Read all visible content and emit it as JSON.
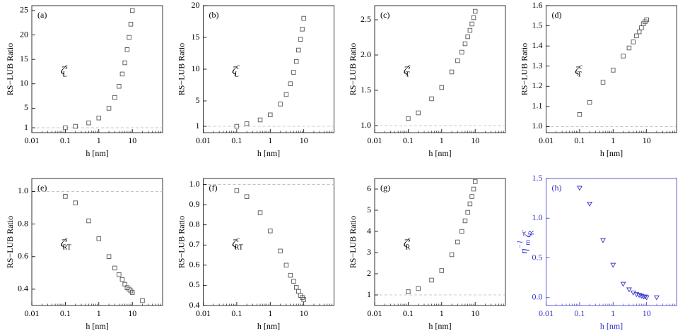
{
  "chart_data": [
    {
      "type": "scatter",
      "title": "(a)",
      "ylabel": "RS−LUB Ratio",
      "xlabel": "h [nm]",
      "xscale": "log",
      "annotation": [
        {
          "text": "ζ",
          "sub": "L",
          "sup": "s"
        }
      ],
      "x": [
        0.1,
        0.2,
        0.5,
        1,
        2,
        3,
        4,
        5,
        6,
        7,
        8,
        9,
        10
      ],
      "values": [
        1.0,
        1.3,
        2.0,
        3.0,
        5.0,
        7.2,
        9.5,
        12,
        14.3,
        17,
        19.5,
        22.2,
        25
      ],
      "xlim": [
        0.01,
        80
      ],
      "xticks": [
        0.01,
        0.1,
        1,
        10
      ],
      "ylim": [
        0,
        26
      ],
      "yticks": [
        1,
        5,
        10,
        15,
        20,
        25
      ],
      "ref_line": 1,
      "marker": "square",
      "color": "#555555",
      "axis_color": "#000000"
    },
    {
      "type": "scatter",
      "title": "(b)",
      "ylabel": "RS−LUB Ratio",
      "xlabel": "h [nm]",
      "xscale": "log",
      "annotation": [
        {
          "text": "ζ",
          "sub": "L",
          "sup": "c"
        }
      ],
      "x": [
        0.1,
        0.2,
        0.5,
        1,
        2,
        3,
        4,
        5,
        6,
        7,
        8,
        9,
        10
      ],
      "values": [
        1.0,
        1.4,
        2.0,
        2.8,
        4.5,
        6.0,
        7.7,
        9.5,
        11.2,
        13,
        14.7,
        16.3,
        18
      ],
      "xlim": [
        0.01,
        80
      ],
      "xticks": [
        0.01,
        0.1,
        1,
        10
      ],
      "ylim": [
        0,
        20
      ],
      "yticks": [
        1,
        5,
        10,
        15,
        20
      ],
      "ref_line": 1,
      "marker": "square",
      "color": "#555555",
      "axis_color": "#000000"
    },
    {
      "type": "scatter",
      "title": "(c)",
      "ylabel": "RS−LUB Ratio",
      "xlabel": "h [nm]",
      "xscale": "log",
      "annotation": [
        {
          "text": "ζ",
          "sub": "T",
          "sup": "s"
        }
      ],
      "x": [
        0.1,
        0.2,
        0.5,
        1,
        2,
        3,
        4,
        5,
        6,
        7,
        8,
        9,
        10
      ],
      "values": [
        1.1,
        1.18,
        1.38,
        1.54,
        1.76,
        1.92,
        2.04,
        2.16,
        2.26,
        2.35,
        2.44,
        2.53,
        2.62
      ],
      "xlim": [
        0.01,
        80
      ],
      "xticks": [
        0.01,
        0.1,
        1,
        10
      ],
      "ylim": [
        0.9,
        2.7
      ],
      "yticks": [
        {
          "value": 1,
          "label": "1.0"
        },
        1.5,
        {
          "value": 2,
          "label": "2.0"
        },
        2.5
      ],
      "ref_line": 1,
      "marker": "square",
      "color": "#555555",
      "axis_color": "#000000"
    },
    {
      "type": "scatter",
      "title": "(d)",
      "ylabel": "RS−LUB Ratio",
      "xlabel": "h [nm]",
      "xscale": "log",
      "annotation": [
        {
          "text": "ζ",
          "sub": "T",
          "sup": "c"
        }
      ],
      "x": [
        0.1,
        0.2,
        0.5,
        1,
        2,
        3,
        4,
        5,
        6,
        7,
        8,
        9,
        10
      ],
      "values": [
        1.06,
        1.12,
        1.22,
        1.28,
        1.35,
        1.39,
        1.42,
        1.45,
        1.47,
        1.49,
        1.51,
        1.52,
        1.53
      ],
      "xlim": [
        0.01,
        80
      ],
      "xticks": [
        0.01,
        0.1,
        1,
        10
      ],
      "ylim": [
        0.97,
        1.6
      ],
      "yticks": [
        {
          "value": 1,
          "label": "1.0"
        },
        1.1,
        1.2,
        1.3,
        1.4,
        1.5,
        1.6
      ],
      "ref_line": 1,
      "marker": "square",
      "color": "#555555",
      "axis_color": "#000000"
    },
    {
      "type": "scatter",
      "title": "(e)",
      "ylabel": "RS−LUB Ratio",
      "xlabel": "h [nm]",
      "xscale": "log",
      "annotation": [
        {
          "text": "ζ",
          "sub": "RT",
          "sup": "s"
        }
      ],
      "x": [
        0.1,
        0.2,
        0.5,
        1,
        2,
        3,
        4,
        5,
        6,
        7,
        8,
        9,
        10,
        20
      ],
      "values": [
        0.97,
        0.93,
        0.82,
        0.71,
        0.6,
        0.53,
        0.49,
        0.46,
        0.43,
        0.41,
        0.4,
        0.39,
        0.38,
        0.33
      ],
      "xlim": [
        0.01,
        80
      ],
      "xticks": [
        0.01,
        0.1,
        1,
        10
      ],
      "ylim": [
        0.3,
        1.08
      ],
      "yticks": [
        0.4,
        0.6,
        0.8,
        {
          "value": 1,
          "label": "1.0"
        }
      ],
      "ref_line": 1,
      "marker": "square",
      "color": "#555555",
      "axis_color": "#000000"
    },
    {
      "type": "scatter",
      "title": "(f)",
      "ylabel": "RS−LUB Ratio",
      "xlabel": "h [nm]",
      "xscale": "log",
      "annotation": [
        {
          "text": "ζ",
          "sub": "RT",
          "sup": "c"
        }
      ],
      "x": [
        0.1,
        0.2,
        0.5,
        1,
        2,
        3,
        4,
        5,
        6,
        7,
        8,
        9,
        10
      ],
      "values": [
        0.97,
        0.94,
        0.86,
        0.77,
        0.67,
        0.6,
        0.55,
        0.52,
        0.49,
        0.47,
        0.45,
        0.44,
        0.43
      ],
      "xlim": [
        0.01,
        80
      ],
      "xticks": [
        0.01,
        0.1,
        1,
        10
      ],
      "ylim": [
        0.4,
        1.03
      ],
      "yticks": [
        0.4,
        0.5,
        0.6,
        0.7,
        0.8,
        0.9,
        {
          "value": 1,
          "label": "1.0"
        }
      ],
      "ref_line": 1,
      "marker": "square",
      "color": "#555555",
      "axis_color": "#000000"
    },
    {
      "type": "scatter",
      "title": "(g)",
      "ylabel": "RS−LUB Ratio",
      "xlabel": "h [nm]",
      "xscale": "log",
      "annotation": [
        {
          "text": "ζ",
          "sub": "R",
          "sup": "s"
        }
      ],
      "x": [
        0.1,
        0.2,
        0.5,
        1,
        2,
        3,
        4,
        5,
        6,
        7,
        8,
        9,
        10
      ],
      "values": [
        1.15,
        1.3,
        1.7,
        2.15,
        2.9,
        3.5,
        4.0,
        4.5,
        4.9,
        5.3,
        5.65,
        6.0,
        6.35
      ],
      "xlim": [
        0.01,
        80
      ],
      "xticks": [
        0.01,
        0.1,
        1,
        10
      ],
      "ylim": [
        0.5,
        6.5
      ],
      "yticks": [
        1,
        2,
        3,
        4,
        5,
        6
      ],
      "ref_line": 1,
      "marker": "square",
      "color": "#555555",
      "axis_color": "#000000"
    },
    {
      "type": "scatter",
      "title": "(h)",
      "xlabel": "h [nm]",
      "xscale": "log",
      "ylabel": [
        {
          "text": "η",
          "sub": "m",
          "sup": "−1"
        },
        {
          "text": "ζ",
          "sub": "R",
          "sup": "c"
        }
      ],
      "x": [
        0.1,
        0.2,
        0.5,
        1,
        2,
        3,
        4,
        5,
        6,
        7,
        8,
        9,
        10,
        20
      ],
      "values": [
        1.38,
        1.18,
        0.72,
        0.41,
        0.17,
        0.1,
        0.06,
        0.04,
        0.03,
        0.02,
        0.01,
        0.01,
        0.0,
        0.0
      ],
      "xlim": [
        0.01,
        80
      ],
      "xticks": [
        0.01,
        0.1,
        1,
        10
      ],
      "ylim": [
        -0.1,
        1.5
      ],
      "yticks": [
        {
          "value": 0,
          "label": "0.0"
        },
        0.5,
        {
          "value": 1,
          "label": "1.0"
        },
        1.5
      ],
      "marker": "triangle-down",
      "color": "#3333cc",
      "axis_color": "#3333cc"
    }
  ]
}
